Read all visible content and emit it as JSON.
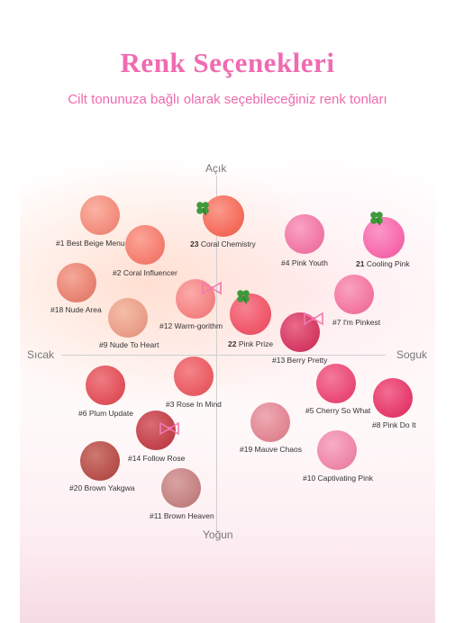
{
  "header": {
    "title": "Renk Seçenekleri",
    "subtitle": "Cilt tonunuza bağlı olarak seçebileceğiniz renk tonları"
  },
  "axes": {
    "top": "Açık",
    "bottom": "Yoğun",
    "left": "Sıcak",
    "right": "Soguk"
  },
  "colors": {
    "title": "#f06bb1",
    "subtitle": "#ee6aad"
  },
  "shades": [
    {
      "label": "#1 Best Beige Menu",
      "color": "#f38f7f"
    },
    {
      "label": "#2 Coral Influencer",
      "color": "#f58072"
    },
    {
      "number": "23",
      "label": "Coral Chemistry",
      "color": "#f56f5e",
      "marker": "clover-icon"
    },
    {
      "label": "#4 Pink Youth",
      "color": "#f27aa8"
    },
    {
      "number": "21",
      "label": "Cooling Pink",
      "color": "#f76cae",
      "marker": "clover-icon"
    },
    {
      "label": "#18 Nude Area",
      "color": "#e98575"
    },
    {
      "label": "#12 Warm-gorithm",
      "color": "#f68686",
      "marker": "bow-icon"
    },
    {
      "number": "22",
      "label": "Pink Prize",
      "color": "#f05a6c",
      "marker": "clover-icon"
    },
    {
      "label": "#7 I'm Pinkest",
      "color": "#f47aa3"
    },
    {
      "label": "#9 Nude To Heart",
      "color": "#eaa08a"
    },
    {
      "label": "#13 Berry Pretty",
      "color": "#d63e66",
      "marker": "bow-icon"
    },
    {
      "label": "#3 Rose In Mind",
      "color": "#ea6066"
    },
    {
      "label": "#6 Plum Update",
      "color": "#e2555e"
    },
    {
      "label": "#5 Cherry So What",
      "color": "#eb4e78"
    },
    {
      "label": "#8 Pink Do It",
      "color": "#e63f6f"
    },
    {
      "label": "#14 Follow Rose",
      "color": "#c5454e",
      "marker": "bow-icon"
    },
    {
      "label": "#19 Mauve Chaos",
      "color": "#e28995"
    },
    {
      "label": "#20 Brown Yakgwa",
      "color": "#b9534e"
    },
    {
      "label": "#10 Captivating Pink",
      "color": "#ef8aab"
    },
    {
      "label": "#11 Brown Heaven",
      "color": "#c68585"
    }
  ]
}
